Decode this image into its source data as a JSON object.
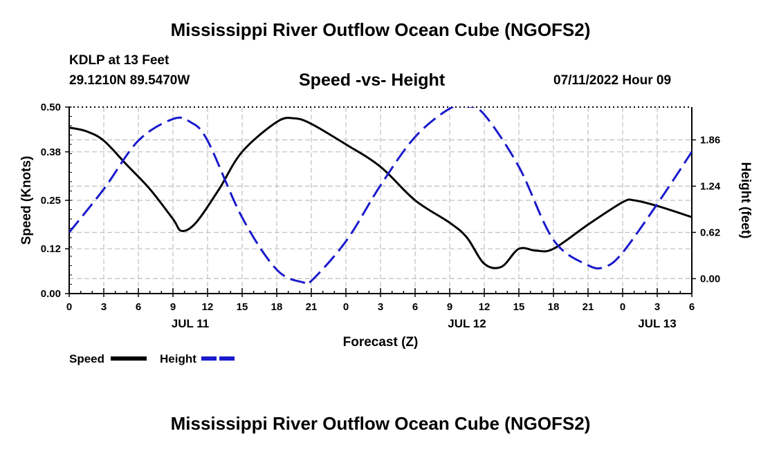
{
  "header": {
    "title": "Mississippi River Outflow Ocean Cube (NGOFS2)",
    "station": "KDLP at 13 Feet",
    "coords": "29.1210N  89.5470W",
    "subtitle": "Speed -vs- Height",
    "datetime": "07/11/2022 Hour 09"
  },
  "footer": {
    "title": "Mississippi River Outflow Ocean Cube (NGOFS2)"
  },
  "colors": {
    "speed": "#000000",
    "height": "#1a1acc",
    "grid": "#bdbdbd"
  },
  "chart_data": {
    "type": "line",
    "title": "Speed -vs- Height",
    "xlabel": "Forecast (Z)",
    "ylabel": "Speed (Knots)",
    "y2label": "Height (feet)",
    "xlim": [
      0,
      54
    ],
    "x_ticks": [
      0,
      3,
      6,
      9,
      12,
      15,
      18,
      21,
      24,
      27,
      30,
      33,
      36,
      39,
      42,
      45,
      48,
      51,
      54
    ],
    "x_tick_labels": [
      "0",
      "3",
      "6",
      "9",
      "12",
      "15",
      "18",
      "21",
      "0",
      "3",
      "6",
      "9",
      "12",
      "15",
      "18",
      "21",
      "0",
      "3",
      "6"
    ],
    "date_labels": [
      {
        "x": 10.5,
        "label": "JUL 11"
      },
      {
        "x": 34.5,
        "label": "JUL 12"
      },
      {
        "x": 51,
        "label": "JUL 13"
      }
    ],
    "ylim": [
      0,
      0.5
    ],
    "y_ticks": [
      0.0,
      0.12,
      0.25,
      0.38,
      0.5
    ],
    "y_tick_labels": [
      "0.00",
      "0.12",
      "0.25",
      "0.38",
      "0.50"
    ],
    "y2lim": [
      -0.2,
      2.3
    ],
    "y2_ticks": [
      0.0,
      0.62,
      1.24,
      1.86
    ],
    "y2_tick_labels": [
      "0.00",
      "0.62",
      "1.24",
      "1.86"
    ],
    "legend": {
      "position": "bottom-left",
      "entries": [
        "Speed",
        "Height"
      ]
    },
    "series": [
      {
        "name": "Speed",
        "axis": "left",
        "style": "solid",
        "x": [
          0,
          1.5,
          3,
          5,
          7,
          9,
          9.75,
          11,
          13,
          15,
          18,
          19.5,
          21,
          24,
          27,
          30,
          33,
          34.5,
          36,
          37.5,
          39,
          40.5,
          42,
          45,
          48,
          49,
          51,
          54
        ],
        "y": [
          0.445,
          0.435,
          0.41,
          0.345,
          0.28,
          0.2,
          0.168,
          0.19,
          0.28,
          0.38,
          0.46,
          0.47,
          0.455,
          0.4,
          0.34,
          0.25,
          0.19,
          0.15,
          0.08,
          0.072,
          0.12,
          0.115,
          0.12,
          0.185,
          0.245,
          0.25,
          0.235,
          0.205
        ]
      },
      {
        "name": "Height",
        "axis": "right",
        "style": "dashed",
        "x": [
          0,
          3,
          6,
          9,
          10.5,
          12,
          15,
          18,
          20.3,
          21,
          24,
          27,
          30,
          33,
          34.5,
          36,
          39,
          42,
          45,
          46.5,
          48,
          51,
          54
        ],
        "y": [
          0.62,
          1.2,
          1.85,
          2.14,
          2.1,
          1.85,
          0.82,
          0.12,
          -0.05,
          -0.03,
          0.5,
          1.25,
          1.9,
          2.28,
          2.31,
          2.2,
          1.5,
          0.52,
          0.18,
          0.16,
          0.35,
          1.0,
          1.7
        ]
      }
    ]
  }
}
